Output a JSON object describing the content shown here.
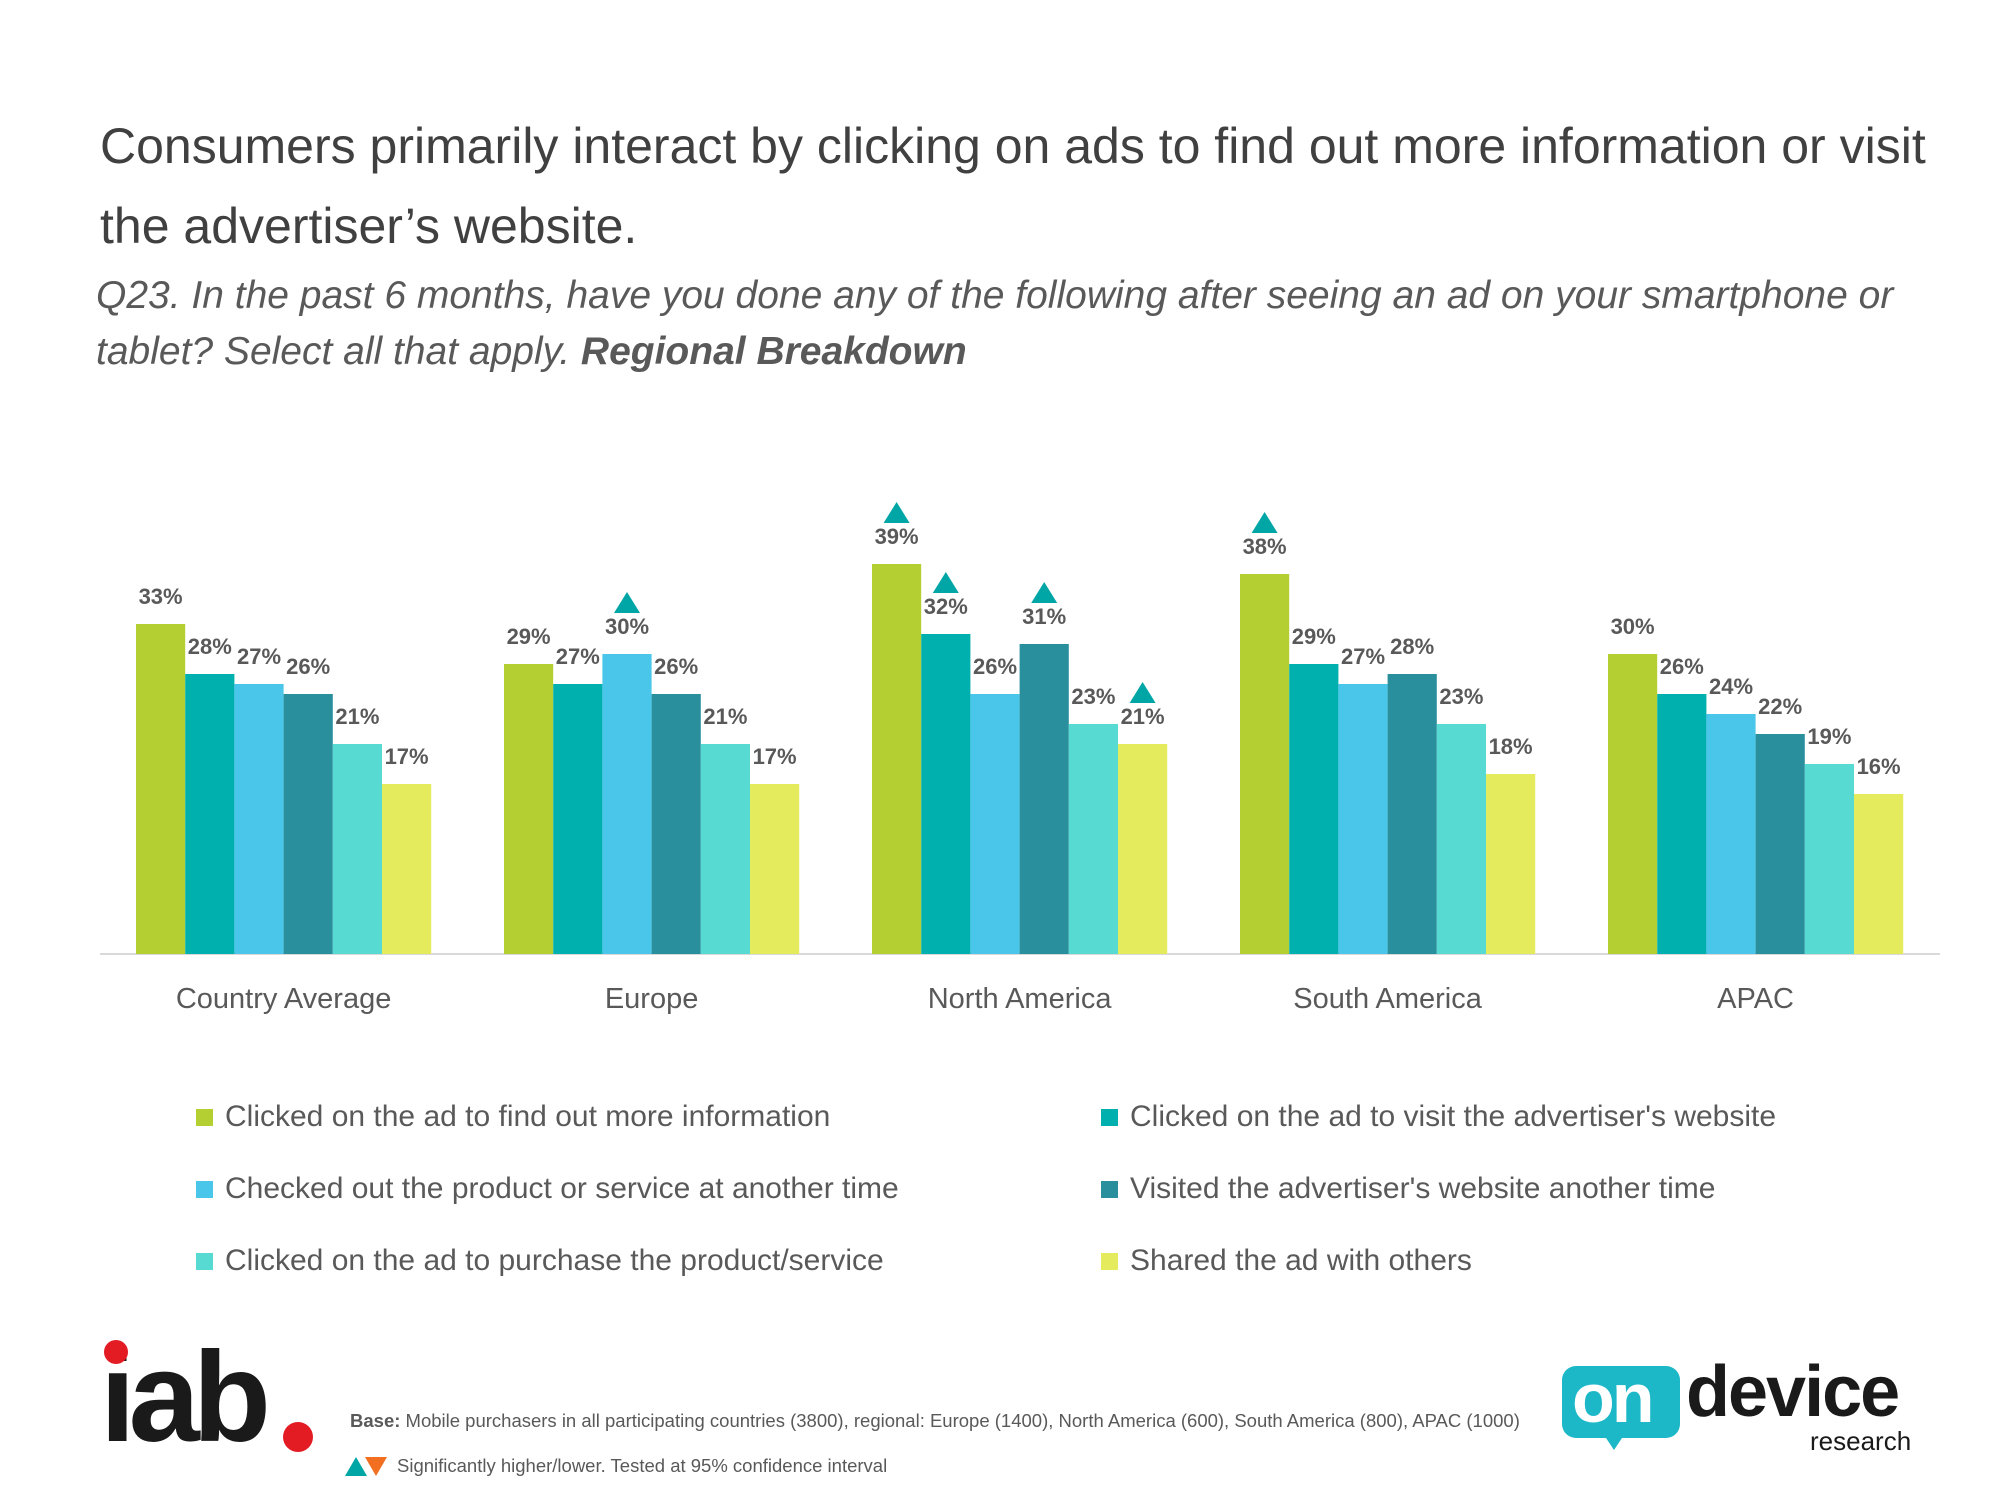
{
  "header": {
    "title": "Consumers primarily interact by clicking on ads to find out more information or visit the advertiser’s website.",
    "subtitle_question": "Q23. In the past 6 months, have you done any of the following after seeing an ad on your smartphone or tablet? Select all that apply.",
    "subtitle_emphasis": "Regional Breakdown"
  },
  "chart_data": {
    "type": "bar",
    "title": "",
    "xlabel": "",
    "ylabel": "",
    "ylim": [
      0,
      45
    ],
    "grid": false,
    "legend_position": "bottom",
    "categories": [
      "Country Average",
      "Europe",
      "North America",
      "South America",
      "APAC"
    ],
    "series": [
      {
        "name": "Clicked on the ad to find out more information",
        "color": "#b3cf31",
        "values": [
          33,
          29,
          39,
          38,
          30
        ],
        "labels": [
          "33%",
          "29%",
          "39%",
          "38%",
          "30%"
        ],
        "significant_higher": [
          false,
          false,
          true,
          true,
          false
        ]
      },
      {
        "name": "Clicked on the ad to visit the advertiser's website",
        "color": "#00b0af",
        "values": [
          28,
          27,
          32,
          29,
          26
        ],
        "labels": [
          "28%",
          "27%",
          "32%",
          "29%",
          "26%"
        ],
        "significant_higher": [
          false,
          false,
          true,
          false,
          false
        ]
      },
      {
        "name": "Checked out the product or service at another time",
        "color": "#49c6ea",
        "values": [
          27,
          30,
          26,
          27,
          24
        ],
        "labels": [
          "27%",
          "30%",
          "26%",
          "27%",
          "24%"
        ],
        "significant_higher": [
          false,
          true,
          false,
          false,
          false
        ]
      },
      {
        "name": "Visited the advertiser's website another time",
        "color": "#2a8f9c",
        "values": [
          26,
          26,
          31,
          28,
          22
        ],
        "labels": [
          "26%",
          "26%",
          "31%",
          "28%",
          "22%"
        ],
        "significant_higher": [
          false,
          false,
          true,
          false,
          false
        ]
      },
      {
        "name": "Clicked on the ad to purchase the product/service",
        "color": "#56dad2",
        "values": [
          21,
          21,
          23,
          23,
          19
        ],
        "labels": [
          "21%",
          "21%",
          "23%",
          "23%",
          "19%"
        ],
        "significant_higher": [
          false,
          false,
          false,
          false,
          false
        ]
      },
      {
        "name": "Shared the ad with others",
        "color": "#e4eb5c",
        "values": [
          17,
          17,
          21,
          18,
          16
        ],
        "labels": [
          "17%",
          "17%",
          "21%",
          "18%",
          "16%"
        ],
        "significant_higher": [
          false,
          false,
          true,
          false,
          false
        ]
      }
    ],
    "marker_colors": {
      "higher": "#00a6a6",
      "lower": "#f26f21"
    }
  },
  "footer": {
    "iab_logo_text": "iab",
    "base_label": "Base:",
    "base_text": "Mobile purchasers in all participating countries (3800), regional: Europe (1400), North America (600), South America (800), APAC (1000)",
    "significance_text": "Significantly higher/lower. Tested at 95% confidence interval",
    "ondevice_on": "on",
    "ondevice_device": "device",
    "ondevice_research": "research"
  }
}
